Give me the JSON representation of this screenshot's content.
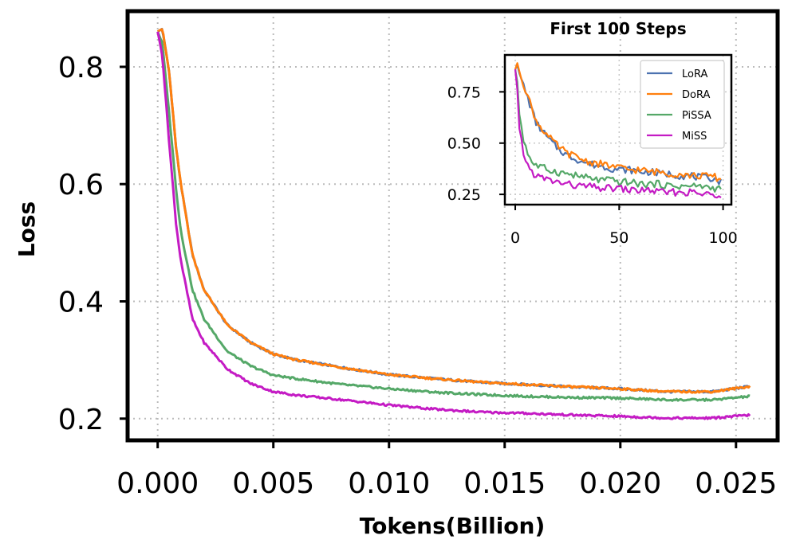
{
  "chart_data": {
    "main": {
      "type": "line",
      "xlabel": "Tokens(Billion)",
      "ylabel": "Loss",
      "xlim": [
        -0.0013,
        0.0268
      ],
      "ylim": [
        0.163,
        0.895
      ],
      "xticks": [
        0.0,
        0.005,
        0.01,
        0.015,
        0.02,
        0.025
      ],
      "xtick_labels": [
        "0.000",
        "0.005",
        "0.010",
        "0.015",
        "0.020",
        "0.025"
      ],
      "yticks": [
        0.2,
        0.4,
        0.6,
        0.8
      ],
      "ytick_labels": [
        "0.2",
        "0.4",
        "0.6",
        "0.8"
      ],
      "grid": "dotted",
      "series": [
        {
          "name": "LoRA",
          "color": "#4c72b0",
          "x": [
            0.0,
            0.0002,
            0.0005,
            0.0008,
            0.001,
            0.0015,
            0.002,
            0.003,
            0.004,
            0.005,
            0.006,
            0.008,
            0.01,
            0.012,
            0.014,
            0.016,
            0.018,
            0.02,
            0.022,
            0.024,
            0.0256
          ],
          "y": [
            0.86,
            0.865,
            0.79,
            0.66,
            0.6,
            0.48,
            0.42,
            0.36,
            0.33,
            0.31,
            0.3,
            0.287,
            0.275,
            0.268,
            0.262,
            0.258,
            0.254,
            0.251,
            0.246,
            0.246,
            0.255
          ]
        },
        {
          "name": "DoRA",
          "color": "#ff7f0e",
          "x": [
            0.0,
            0.0002,
            0.0005,
            0.0008,
            0.001,
            0.0015,
            0.002,
            0.003,
            0.004,
            0.005,
            0.006,
            0.008,
            0.01,
            0.012,
            0.014,
            0.016,
            0.018,
            0.02,
            0.022,
            0.024,
            0.0256
          ],
          "y": [
            0.86,
            0.865,
            0.79,
            0.66,
            0.6,
            0.48,
            0.42,
            0.36,
            0.33,
            0.31,
            0.3,
            0.287,
            0.275,
            0.268,
            0.262,
            0.258,
            0.254,
            0.251,
            0.246,
            0.246,
            0.255
          ]
        },
        {
          "name": "PiSSA",
          "color": "#55a868",
          "x": [
            0.0,
            0.0002,
            0.0005,
            0.0008,
            0.001,
            0.0015,
            0.002,
            0.003,
            0.004,
            0.005,
            0.006,
            0.008,
            0.01,
            0.012,
            0.014,
            0.016,
            0.018,
            0.02,
            0.022,
            0.024,
            0.0256
          ],
          "y": [
            0.86,
            0.84,
            0.72,
            0.59,
            0.52,
            0.42,
            0.37,
            0.315,
            0.29,
            0.274,
            0.268,
            0.258,
            0.251,
            0.245,
            0.241,
            0.238,
            0.236,
            0.235,
            0.232,
            0.232,
            0.238
          ]
        },
        {
          "name": "MiSS",
          "color": "#c41bc4",
          "x": [
            0.0,
            0.0002,
            0.0005,
            0.0008,
            0.001,
            0.0015,
            0.002,
            0.003,
            0.004,
            0.005,
            0.006,
            0.008,
            0.01,
            0.012,
            0.014,
            0.016,
            0.018,
            0.02,
            0.022,
            0.024,
            0.0256
          ],
          "y": [
            0.86,
            0.82,
            0.67,
            0.53,
            0.47,
            0.37,
            0.33,
            0.285,
            0.26,
            0.246,
            0.24,
            0.232,
            0.223,
            0.216,
            0.211,
            0.209,
            0.206,
            0.204,
            0.201,
            0.201,
            0.206
          ]
        }
      ]
    },
    "inset": {
      "type": "line",
      "title": "First 100 Steps",
      "xlim": [
        -5,
        104
      ],
      "ylim": [
        0.2,
        0.93
      ],
      "xticks": [
        0,
        50,
        100
      ],
      "xtick_labels": [
        "0",
        "50",
        "100"
      ],
      "yticks": [
        0.25,
        0.5,
        0.75
      ],
      "ytick_labels": [
        "0.25",
        "0.50",
        "0.75"
      ],
      "grid": "dotted",
      "legend": "upper right",
      "series": [
        {
          "name": "LoRA",
          "color": "#4c72b0",
          "x": [
            0,
            1,
            2,
            4,
            6,
            8,
            10,
            13,
            16,
            20,
            25,
            30,
            35,
            40,
            45,
            50,
            55,
            60,
            65,
            70,
            75,
            80,
            85,
            90,
            95,
            99
          ],
          "y": [
            0.86,
            0.88,
            0.84,
            0.78,
            0.72,
            0.66,
            0.6,
            0.56,
            0.52,
            0.48,
            0.44,
            0.42,
            0.4,
            0.39,
            0.38,
            0.37,
            0.37,
            0.36,
            0.36,
            0.35,
            0.35,
            0.34,
            0.34,
            0.33,
            0.33,
            0.31
          ]
        },
        {
          "name": "DoRA",
          "color": "#ff7f0e",
          "x": [
            0,
            1,
            2,
            4,
            6,
            8,
            10,
            13,
            16,
            20,
            25,
            30,
            35,
            40,
            45,
            50,
            55,
            60,
            65,
            70,
            75,
            80,
            85,
            90,
            95,
            99
          ],
          "y": [
            0.86,
            0.89,
            0.85,
            0.79,
            0.73,
            0.67,
            0.61,
            0.57,
            0.53,
            0.49,
            0.45,
            0.43,
            0.41,
            0.4,
            0.39,
            0.38,
            0.37,
            0.37,
            0.36,
            0.36,
            0.35,
            0.35,
            0.34,
            0.34,
            0.34,
            0.32
          ]
        },
        {
          "name": "PiSSA",
          "color": "#55a868",
          "x": [
            0,
            1,
            2,
            4,
            6,
            8,
            10,
            13,
            16,
            20,
            25,
            30,
            35,
            40,
            45,
            50,
            55,
            60,
            65,
            70,
            75,
            80,
            85,
            90,
            95,
            99
          ],
          "y": [
            0.86,
            0.8,
            0.64,
            0.52,
            0.45,
            0.41,
            0.39,
            0.38,
            0.37,
            0.36,
            0.35,
            0.34,
            0.33,
            0.32,
            0.32,
            0.31,
            0.31,
            0.3,
            0.3,
            0.3,
            0.29,
            0.29,
            0.29,
            0.29,
            0.28,
            0.28
          ]
        },
        {
          "name": "MiSS",
          "color": "#c41bc4",
          "x": [
            0,
            1,
            2,
            4,
            6,
            8,
            10,
            13,
            16,
            20,
            25,
            30,
            35,
            40,
            45,
            50,
            55,
            60,
            65,
            70,
            75,
            80,
            85,
            90,
            95,
            99
          ],
          "y": [
            0.86,
            0.76,
            0.57,
            0.45,
            0.39,
            0.36,
            0.34,
            0.33,
            0.32,
            0.31,
            0.3,
            0.29,
            0.29,
            0.28,
            0.28,
            0.28,
            0.27,
            0.27,
            0.27,
            0.26,
            0.26,
            0.26,
            0.26,
            0.25,
            0.25,
            0.25
          ]
        }
      ]
    }
  }
}
